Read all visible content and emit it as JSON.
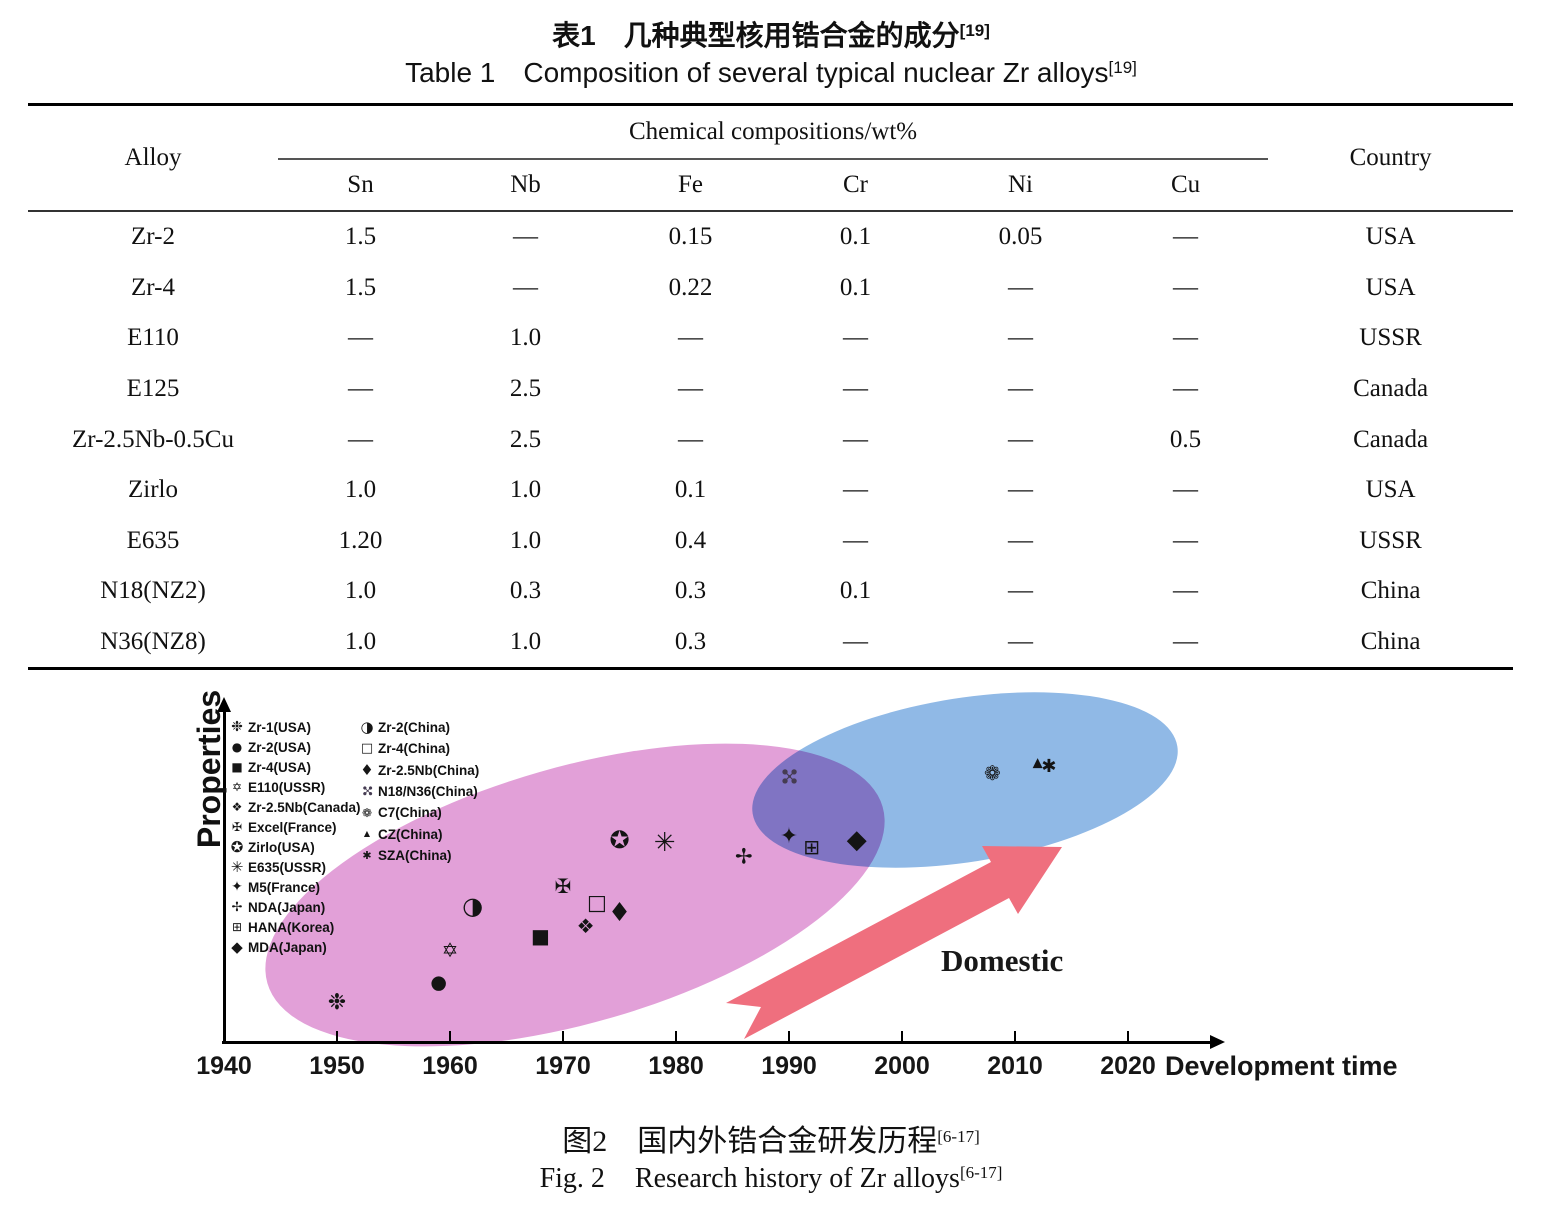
{
  "table_section": {
    "title_zh": {
      "prefix": "表1",
      "text": "几种典型核用锆合金的成分",
      "sup": "[19]"
    },
    "title_en": {
      "prefix": "Table 1",
      "text": "Composition of several typical nuclear Zr alloys",
      "sup": "[19]"
    },
    "header": {
      "alloy": "Alloy",
      "group": "Chemical compositions/wt%",
      "elements": [
        "Sn",
        "Nb",
        "Fe",
        "Cr",
        "Ni",
        "Cu"
      ],
      "country": "Country"
    },
    "rows": [
      {
        "alloy": "Zr-2",
        "values": [
          "1.5",
          "—",
          "0.15",
          "0.1",
          "0.05",
          "—"
        ],
        "country": "USA"
      },
      {
        "alloy": "Zr-4",
        "values": [
          "1.5",
          "—",
          "0.22",
          "0.1",
          "—",
          "—"
        ],
        "country": "USA"
      },
      {
        "alloy": "E110",
        "values": [
          "—",
          "1.0",
          "—",
          "—",
          "—",
          "—"
        ],
        "country": "USSR"
      },
      {
        "alloy": "E125",
        "values": [
          "—",
          "2.5",
          "—",
          "—",
          "—",
          "—"
        ],
        "country": "Canada"
      },
      {
        "alloy": "Zr-2.5Nb-0.5Cu",
        "values": [
          "—",
          "2.5",
          "—",
          "—",
          "—",
          "0.5"
        ],
        "country": "Canada"
      },
      {
        "alloy": "Zirlo",
        "values": [
          "1.0",
          "1.0",
          "0.1",
          "—",
          "—",
          "—"
        ],
        "country": "USA"
      },
      {
        "alloy": "E635",
        "values": [
          "1.20",
          "1.0",
          "0.4",
          "—",
          "—",
          "—"
        ],
        "country": "USSR"
      },
      {
        "alloy": "N18(NZ2)",
        "values": [
          "1.0",
          "0.3",
          "0.3",
          "0.1",
          "—",
          "—"
        ],
        "country": "China"
      },
      {
        "alloy": "N36(NZ8)",
        "values": [
          "1.0",
          "1.0",
          "0.3",
          "—",
          "—",
          "—"
        ],
        "country": "China"
      }
    ]
  },
  "figure": {
    "ylabel": "Properties",
    "xlabel": "Development time",
    "annotation": "Domestic",
    "colors": {
      "foreign_ellipse": "#e2a0d8",
      "domestic_ellipse": "#90b9e6",
      "overlap": "#a98fd3",
      "arrow": "#ef6f7e",
      "symbol": "#141414",
      "n18_symbol": "#453c52"
    },
    "legend_left": [
      {
        "symbol": "❉",
        "label": "Zr-1(USA)"
      },
      {
        "symbol": "●",
        "label": "Zr-2(USA)"
      },
      {
        "symbol": "■",
        "label": "Zr-4(USA)"
      },
      {
        "symbol": "✡",
        "label": "E110(USSR)"
      },
      {
        "symbol": "❖",
        "label": "Zr-2.5Nb(Canada)"
      },
      {
        "symbol": "✠",
        "label": "Excel(France)"
      },
      {
        "symbol": "✪",
        "label": "Zirlo(USA)"
      },
      {
        "symbol": "✳",
        "label": "E635(USSR)"
      },
      {
        "symbol": "✦",
        "label": "M5(France)"
      },
      {
        "symbol": "✢",
        "label": "NDA(Japan)"
      },
      {
        "symbol": "⊞",
        "label": "HANA(Korea)"
      },
      {
        "symbol": "◆",
        "label": "MDA(Japan)"
      }
    ],
    "legend_right": [
      {
        "symbol": "◑",
        "label": "Zr-2(China)"
      },
      {
        "symbol": "□",
        "label": "Zr-4(China)"
      },
      {
        "symbol": "♦",
        "label": "Zr-2.5Nb(China)"
      },
      {
        "symbol": "✣",
        "label": "N18/N36(China)"
      },
      {
        "symbol": "❁",
        "label": "C7(China)"
      },
      {
        "symbol": "▲",
        "label": "CZ(China)"
      },
      {
        "symbol": "✱",
        "label": "SZA(China)"
      }
    ],
    "caption_zh": {
      "prefix": "图2",
      "text": "国内外锆合金研发历程",
      "sup": "[6-17]"
    },
    "caption_en": {
      "prefix": "Fig. 2",
      "text": "Research history of Zr alloys",
      "sup": "[6-17]"
    }
  },
  "chart_data": {
    "type": "scatter",
    "title": "Research history of Zr alloys",
    "xlabel": "Development time",
    "ylabel": "Properties",
    "xlim": [
      1940,
      2028
    ],
    "ylim_note": "Properties axis is unlabeled; y values are relative 0-100",
    "x_ticks": [
      1940,
      1950,
      1960,
      1970,
      1980,
      1990,
      2000,
      2010,
      2020
    ],
    "grid": false,
    "legend_position": "upper-left, two columns inside plot",
    "regions": [
      {
        "name": "foreign-development ellipse",
        "color": "#e2a0d8",
        "x_range": [
          1944,
          1998
        ],
        "y_range": [
          5,
          80
        ]
      },
      {
        "name": "domestic ellipse",
        "color": "#90b9e6",
        "x_range": [
          1987,
          2024
        ],
        "y_range": [
          55,
          100
        ]
      }
    ],
    "points": [
      {
        "label": "Zr-1(USA)",
        "symbol": "❉",
        "x": 1950,
        "y": 12,
        "region": "foreign"
      },
      {
        "label": "Zr-2(USA)",
        "symbol": "●",
        "x": 1959,
        "y": 18,
        "region": "foreign"
      },
      {
        "label": "E110(USSR)",
        "symbol": "✡",
        "x": 1960,
        "y": 28,
        "region": "foreign"
      },
      {
        "label": "Zr-2(China)",
        "symbol": "◑",
        "x": 1962,
        "y": 41,
        "region": "foreign"
      },
      {
        "label": "Zr-4(USA)",
        "symbol": "■",
        "x": 1968,
        "y": 32,
        "region": "foreign"
      },
      {
        "label": "Excel(France)",
        "symbol": "✠",
        "x": 1970,
        "y": 47,
        "region": "foreign"
      },
      {
        "label": "Zr-2.5Nb(Canada)",
        "symbol": "❖",
        "x": 1972,
        "y": 35,
        "region": "foreign"
      },
      {
        "label": "Zr-4(China)",
        "symbol": "□",
        "x": 1973,
        "y": 42,
        "region": "foreign"
      },
      {
        "label": "Zr-2.5Nb(China)",
        "symbol": "♦",
        "x": 1975,
        "y": 39,
        "region": "foreign"
      },
      {
        "label": "Zirlo(USA)",
        "symbol": "✪",
        "x": 1975,
        "y": 61,
        "region": "foreign"
      },
      {
        "label": "E635(USSR)",
        "symbol": "✳",
        "x": 1979,
        "y": 60,
        "region": "foreign"
      },
      {
        "label": "NDA(Japan)",
        "symbol": "✢",
        "x": 1986,
        "y": 56,
        "region": "foreign"
      },
      {
        "label": "M5(France)",
        "symbol": "✦",
        "x": 1990,
        "y": 62,
        "region": "foreign"
      },
      {
        "label": "N18/N36(China)",
        "symbol": "✣",
        "x": 1990,
        "y": 80,
        "region": "overlap"
      },
      {
        "label": "HANA(Korea)",
        "symbol": "⊞",
        "x": 1992,
        "y": 59,
        "region": "foreign"
      },
      {
        "label": "MDA(Japan)",
        "symbol": "◆",
        "x": 1996,
        "y": 61,
        "region": "domestic-edge"
      },
      {
        "label": "C7(China)",
        "symbol": "❁",
        "x": 2008,
        "y": 81,
        "region": "domestic"
      },
      {
        "label": "CZ(China)",
        "symbol": "▲",
        "x": 2012,
        "y": 84,
        "region": "domestic"
      },
      {
        "label": "SZA(China)",
        "symbol": "✱",
        "x": 2013,
        "y": 83,
        "region": "domestic"
      }
    ]
  }
}
